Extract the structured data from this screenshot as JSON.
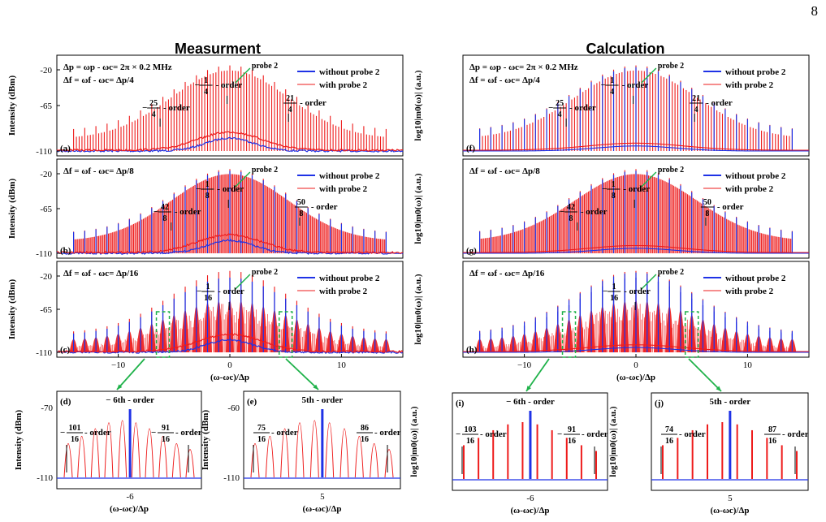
{
  "page_number": "8",
  "column_titles": {
    "left": "Measurment",
    "right": "Calculation"
  },
  "colors": {
    "blue": "#1f32e6",
    "red": "#ee1b1b",
    "green": "#1fb24a",
    "purple": "#6a2ab0"
  },
  "main_panels": [
    {
      "id": "a",
      "label": "(a)",
      "side": "left",
      "ylabel": "Intensity (dBm)",
      "yticks": [
        "-20",
        "-65",
        "-110"
      ],
      "eq1": "Δp = ωp - ωc= 2π × 0.2 MHz",
      "eq2": "Δf = ωf - ωc= Δp/4",
      "legend": [
        "without probe 2",
        "with probe 2"
      ],
      "probe_label": "probe 2",
      "orders": [
        {
          "sign": "−",
          "num": "1",
          "den": "4",
          "suffix": "order",
          "x": -0.25
        },
        {
          "sign": "−",
          "num": "25",
          "den": "4",
          "suffix": "order",
          "x": -6.25
        },
        {
          "sign": "",
          "num": "21",
          "den": "4",
          "suffix": "order",
          "x": 5.25
        }
      ]
    },
    {
      "id": "b",
      "label": "(b)",
      "side": "left",
      "ylabel": "Intensity (dBm)",
      "yticks": [
        "-20",
        "-65",
        "-110"
      ],
      "eq2": "Δf = ωf - ωc= Δp/8",
      "legend": [
        "without probe 2",
        "with probe 2"
      ],
      "probe_label": "probe 2",
      "orders": [
        {
          "sign": "−",
          "num": "1",
          "den": "8",
          "suffix": "order",
          "x": -0.125
        },
        {
          "sign": "−",
          "num": "42",
          "den": "8",
          "suffix": "order",
          "x": -5.25
        },
        {
          "sign": "",
          "num": "50",
          "den": "8",
          "suffix": "order",
          "x": 6.25
        }
      ]
    },
    {
      "id": "c",
      "label": "(c)",
      "side": "left",
      "ylabel": "Intensity (dBm)",
      "yticks": [
        "-20",
        "-65",
        "-110"
      ],
      "eq2": "Δf = ωf - ωc= Δp/16",
      "legend": [
        "without probe 2",
        "with probe 2"
      ],
      "probe_label": "probe 2",
      "orders": [
        {
          "sign": "−",
          "num": "1",
          "den": "16",
          "suffix": "order",
          "x": -0.0625
        }
      ],
      "xticks": [
        "−10",
        "0",
        "10"
      ],
      "xlabel": "(ω-ωc)/Δp"
    },
    {
      "id": "f",
      "label": "(f)",
      "side": "right",
      "ylabel": "log10|m0(ω)| (a.u.)",
      "eq1": "Δp = ωp - ωc= 2π × 0.2 MHz",
      "eq2": "Δf = ωf - ωc= Δp/4",
      "legend": [
        "without probe 2",
        "with probe 2"
      ],
      "probe_label": "probe 2",
      "orders": [
        {
          "sign": "−",
          "num": "1",
          "den": "4",
          "suffix": "order",
          "x": -0.25
        },
        {
          "sign": "−",
          "num": "25",
          "den": "4",
          "suffix": "order",
          "x": -6.25
        },
        {
          "sign": "",
          "num": "21",
          "den": "4",
          "suffix": "order",
          "x": 5.25
        }
      ]
    },
    {
      "id": "g",
      "label": "(g)",
      "side": "right",
      "ylabel": "log10|m0(ω)| (a.u.)",
      "eq2": "Δf = ωf - ωc= Δp/8",
      "legend": [
        "without probe 2",
        "with probe 2"
      ],
      "probe_label": "probe 2",
      "orders": [
        {
          "sign": "−",
          "num": "1",
          "den": "8",
          "suffix": "order",
          "x": -0.125
        },
        {
          "sign": "−",
          "num": "42",
          "den": "8",
          "suffix": "order",
          "x": -5.25
        },
        {
          "sign": "",
          "num": "50",
          "den": "8",
          "suffix": "order",
          "x": 6.25
        }
      ]
    },
    {
      "id": "h",
      "label": "(h)",
      "side": "right",
      "ylabel": "log10|m0(ω)| (a.u.)",
      "eq2": "Δf = ωf - ωc= Δp/16",
      "legend": [
        "without probe 2",
        "with probe 2"
      ],
      "probe_label": "probe 2",
      "orders": [
        {
          "sign": "−",
          "num": "1",
          "den": "16",
          "suffix": "order",
          "x": -0.0625
        }
      ],
      "xticks": [
        "−10",
        "0",
        "10"
      ],
      "xlabel": "(ω-ωc)/Δp"
    }
  ],
  "zoom_panels": [
    {
      "id": "d",
      "label": "(d)",
      "ylabel": "Intensity (dBm)",
      "yticks": [
        "-70",
        "-110"
      ],
      "xtick": "-6",
      "xlabel": "(ω-ωc)/Δp",
      "top_label": "− 6th - order",
      "orders": [
        {
          "sign": "−",
          "num": "101",
          "den": "16",
          "suffix": "order"
        },
        {
          "sign": "−",
          "num": "91",
          "den": "16",
          "suffix": "order"
        }
      ]
    },
    {
      "id": "e",
      "label": "(e)",
      "ylabel": "Intensity (dBm)",
      "yticks": [
        "-60",
        "-110"
      ],
      "xtick": "5",
      "xlabel": "(ω-ωc)/Δp",
      "top_label": "5th - order",
      "orders": [
        {
          "sign": "",
          "num": "75",
          "den": "16",
          "suffix": "order"
        },
        {
          "sign": "",
          "num": "86",
          "den": "16",
          "suffix": "order"
        }
      ]
    },
    {
      "id": "i",
      "label": "(i)",
      "ylabel": "log10|m0(ω)| (a.u.)",
      "xtick": "-6",
      "xlabel": "(ω-ωc)/Δp",
      "top_label": "− 6th - order",
      "orders": [
        {
          "sign": "−",
          "num": "103",
          "den": "16",
          "suffix": "order"
        },
        {
          "sign": "−",
          "num": "91",
          "den": "16",
          "suffix": "order"
        }
      ]
    },
    {
      "id": "j",
      "label": "(j)",
      "ylabel": "log10|m0(ω)| (a.u.)",
      "xtick": "5",
      "xlabel": "(ω-ωc)/Δp",
      "top_label": "5th - order",
      "orders": [
        {
          "sign": "",
          "num": "74",
          "den": "16",
          "suffix": "order"
        },
        {
          "sign": "",
          "num": "87",
          "den": "16",
          "suffix": "order"
        }
      ]
    }
  ]
}
